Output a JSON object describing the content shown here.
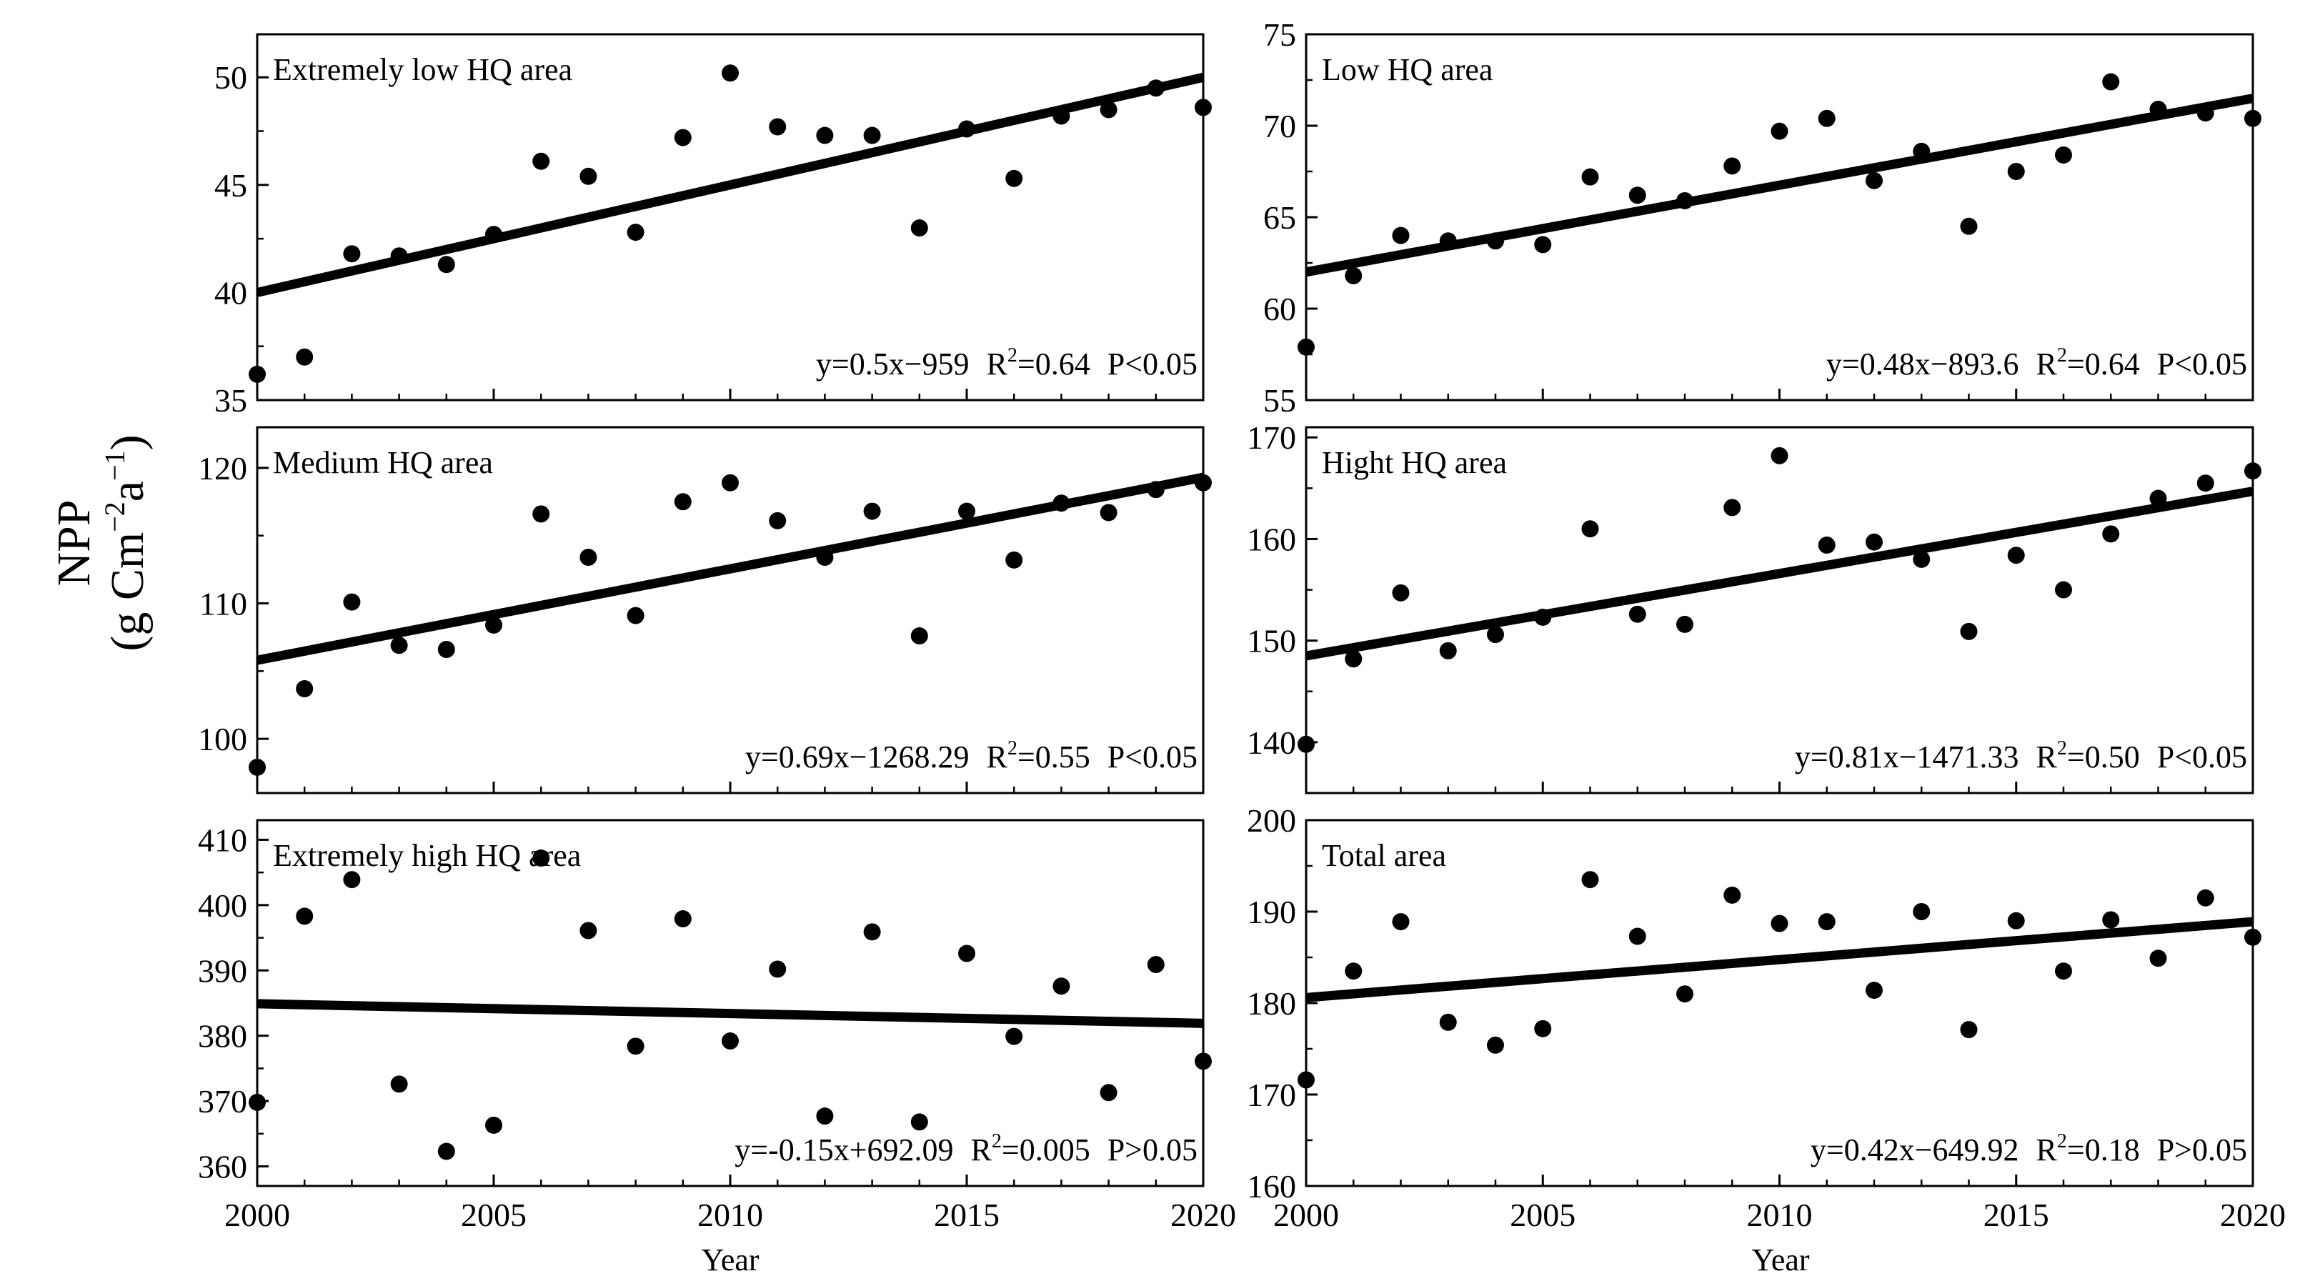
{
  "figure": {
    "ylabel_main": "NPP",
    "ylabel_unit_prefix": "(g Cm",
    "ylabel_unit_sup1": "−2",
    "ylabel_unit_mid": "a",
    "ylabel_unit_sup2": "−1",
    "ylabel_unit_suffix": ")",
    "xlabel": "Year"
  },
  "chart_data": [
    {
      "type": "scatter",
      "title": "Extremely low HQ area",
      "xlim": [
        2000,
        2020
      ],
      "ylim": [
        35,
        52
      ],
      "yticks": [
        35,
        40,
        45,
        50
      ],
      "x": [
        2000,
        2001,
        2002,
        2003,
        2004,
        2005,
        2006,
        2007,
        2008,
        2009,
        2010,
        2011,
        2012,
        2013,
        2014,
        2015,
        2016,
        2017,
        2018,
        2019,
        2020
      ],
      "values": [
        36.2,
        37.0,
        41.8,
        41.7,
        41.3,
        42.7,
        46.1,
        45.4,
        42.8,
        47.2,
        50.2,
        47.7,
        47.3,
        47.3,
        43.0,
        47.6,
        45.3,
        48.2,
        48.5,
        49.5,
        48.6
      ],
      "fit": {
        "slope": 0.5,
        "y_start": 40.0,
        "y_end": 50.0
      },
      "equation": "y=0.5x−959",
      "r2_label": "R",
      "r2_sup": "2",
      "r2_value": "=0.64",
      "p": "P<0.05"
    },
    {
      "type": "scatter",
      "title": "Low HQ area",
      "xlim": [
        2000,
        2020
      ],
      "ylim": [
        55,
        75
      ],
      "yticks": [
        55,
        60,
        65,
        70,
        75
      ],
      "x": [
        2000,
        2001,
        2002,
        2003,
        2004,
        2005,
        2006,
        2007,
        2008,
        2009,
        2010,
        2011,
        2012,
        2013,
        2014,
        2015,
        2016,
        2017,
        2018,
        2019,
        2020
      ],
      "values": [
        57.9,
        61.8,
        64.0,
        63.7,
        63.7,
        63.5,
        67.2,
        66.2,
        65.9,
        67.8,
        69.7,
        70.4,
        67.0,
        68.6,
        64.5,
        67.5,
        68.4,
        72.4,
        70.9,
        70.7,
        70.4
      ],
      "fit": {
        "slope": 0.48,
        "y_start": 62.0,
        "y_end": 71.5
      },
      "equation": "y=0.48x−893.6",
      "r2_label": "R",
      "r2_sup": "2",
      "r2_value": "=0.64",
      "p": "P<0.05"
    },
    {
      "type": "scatter",
      "title": "Medium HQ area",
      "xlim": [
        2000,
        2020
      ],
      "ylim": [
        96,
        123
      ],
      "yticks": [
        100,
        110,
        120
      ],
      "x": [
        2000,
        2001,
        2002,
        2003,
        2004,
        2005,
        2006,
        2007,
        2008,
        2009,
        2010,
        2011,
        2012,
        2013,
        2014,
        2015,
        2016,
        2017,
        2018,
        2019,
        2020
      ],
      "values": [
        97.9,
        103.7,
        110.1,
        106.9,
        106.6,
        108.4,
        116.6,
        113.4,
        109.1,
        117.5,
        118.9,
        116.1,
        113.4,
        116.8,
        107.6,
        116.8,
        113.2,
        117.4,
        116.7,
        118.4,
        118.9
      ],
      "fit": {
        "slope": 0.69,
        "y_start": 105.8,
        "y_end": 119.3
      },
      "equation": "y=0.69x−1268.29",
      "r2_label": "R",
      "r2_sup": "2",
      "r2_value": "=0.55",
      "p": "P<0.05"
    },
    {
      "type": "scatter",
      "title": "Hight HQ area",
      "xlim": [
        2000,
        2020
      ],
      "ylim": [
        135,
        171
      ],
      "yticks": [
        140,
        150,
        160,
        170
      ],
      "x": [
        2000,
        2001,
        2002,
        2003,
        2004,
        2005,
        2006,
        2007,
        2008,
        2009,
        2010,
        2011,
        2012,
        2013,
        2014,
        2015,
        2016,
        2017,
        2018,
        2019,
        2020
      ],
      "values": [
        139.8,
        148.2,
        154.7,
        149.0,
        150.6,
        152.3,
        161.0,
        152.6,
        151.6,
        163.1,
        168.2,
        159.4,
        159.7,
        158.0,
        150.9,
        158.4,
        155.0,
        160.5,
        164.0,
        165.5,
        166.7
      ],
      "fit": {
        "slope": 0.81,
        "y_start": 148.5,
        "y_end": 164.7
      },
      "equation": "y=0.81x−1471.33",
      "r2_label": "R",
      "r2_sup": "2",
      "r2_value": "=0.50",
      "p": "P<0.05"
    },
    {
      "type": "scatter",
      "title": "Extremely high HQ area",
      "xlim": [
        2000,
        2020
      ],
      "ylim": [
        357,
        413
      ],
      "yticks": [
        360,
        370,
        380,
        390,
        400,
        410
      ],
      "x": [
        2000,
        2001,
        2002,
        2003,
        2004,
        2005,
        2006,
        2007,
        2008,
        2009,
        2010,
        2011,
        2012,
        2013,
        2014,
        2015,
        2016,
        2017,
        2018,
        2019,
        2020
      ],
      "values": [
        369.8,
        398.3,
        403.9,
        372.6,
        362.3,
        366.3,
        407.2,
        396.1,
        378.4,
        397.9,
        379.2,
        390.2,
        367.7,
        395.9,
        366.8,
        392.6,
        379.9,
        387.6,
        371.3,
        390.9,
        376.1
      ],
      "fit": {
        "slope": -0.15,
        "y_start": 384.9,
        "y_end": 381.9
      },
      "equation": "y=-0.15x+692.09",
      "r2_label": "R",
      "r2_sup": "2",
      "r2_value": "=0.005",
      "p": "P>0.05"
    },
    {
      "type": "scatter",
      "title": "Total area",
      "xlim": [
        2000,
        2020
      ],
      "ylim": [
        160,
        200
      ],
      "yticks": [
        160,
        170,
        180,
        190,
        200
      ],
      "x": [
        2000,
        2001,
        2002,
        2003,
        2004,
        2005,
        2006,
        2007,
        2008,
        2009,
        2010,
        2011,
        2012,
        2013,
        2014,
        2015,
        2016,
        2017,
        2018,
        2019,
        2020
      ],
      "values": [
        171.6,
        183.5,
        188.9,
        177.9,
        175.4,
        177.2,
        193.5,
        187.3,
        181.0,
        191.8,
        188.7,
        188.9,
        181.4,
        190.0,
        177.1,
        189.0,
        183.5,
        189.1,
        184.9,
        191.5,
        187.2
      ],
      "fit": {
        "slope": 0.42,
        "y_start": 180.6,
        "y_end": 188.9
      },
      "equation": "y=0.42x−649.92",
      "r2_label": "R",
      "r2_sup": "2",
      "r2_value": "=0.18",
      "p": "P>0.05"
    }
  ]
}
